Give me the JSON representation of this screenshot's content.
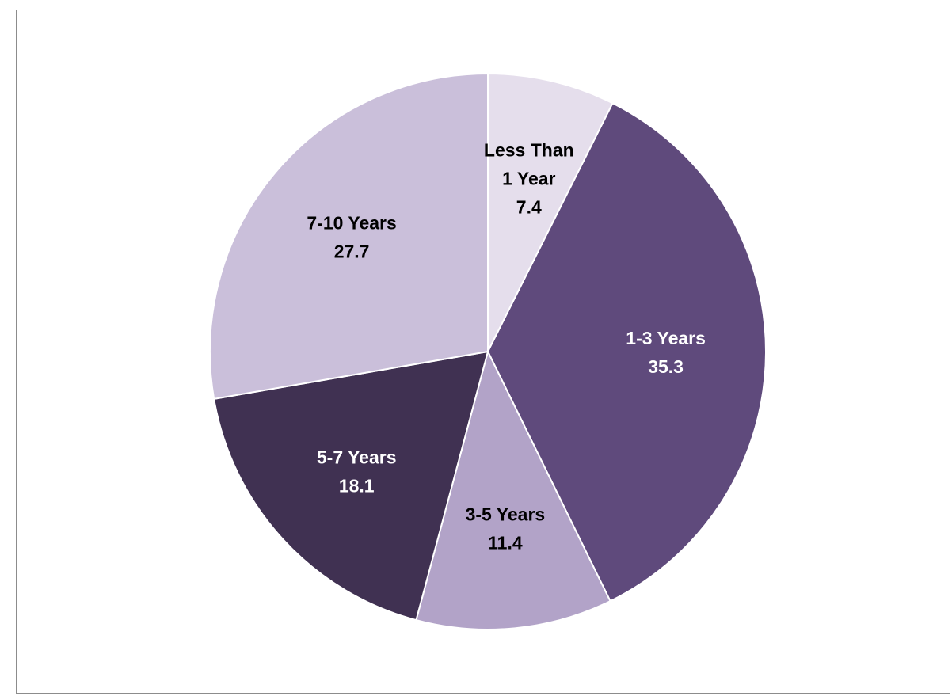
{
  "chart_data": {
    "type": "pie",
    "title": "",
    "start_angle_deg": 0,
    "direction": "clockwise",
    "slices": [
      {
        "label_lines": [
          "Less Than",
          "1 Year"
        ],
        "value": 7.4,
        "value_text": "7.4",
        "color": "#E5DEEC",
        "label_color": "#000000"
      },
      {
        "label_lines": [
          "1-3 Years"
        ],
        "value": 35.3,
        "value_text": "35.3",
        "color": "#5F4A7C",
        "label_color": "#FFFFFF"
      },
      {
        "label_lines": [
          "3-5 Years"
        ],
        "value": 11.4,
        "value_text": "11.4",
        "color": "#B2A3C8",
        "label_color": "#000000"
      },
      {
        "label_lines": [
          "5-7 Years"
        ],
        "value": 18.1,
        "value_text": "18.1",
        "color": "#403152",
        "label_color": "#FFFFFF"
      },
      {
        "label_lines": [
          "7-10 Years"
        ],
        "value": 27.7,
        "value_text": "27.7",
        "color": "#CABFDA",
        "label_color": "#000000"
      }
    ]
  }
}
